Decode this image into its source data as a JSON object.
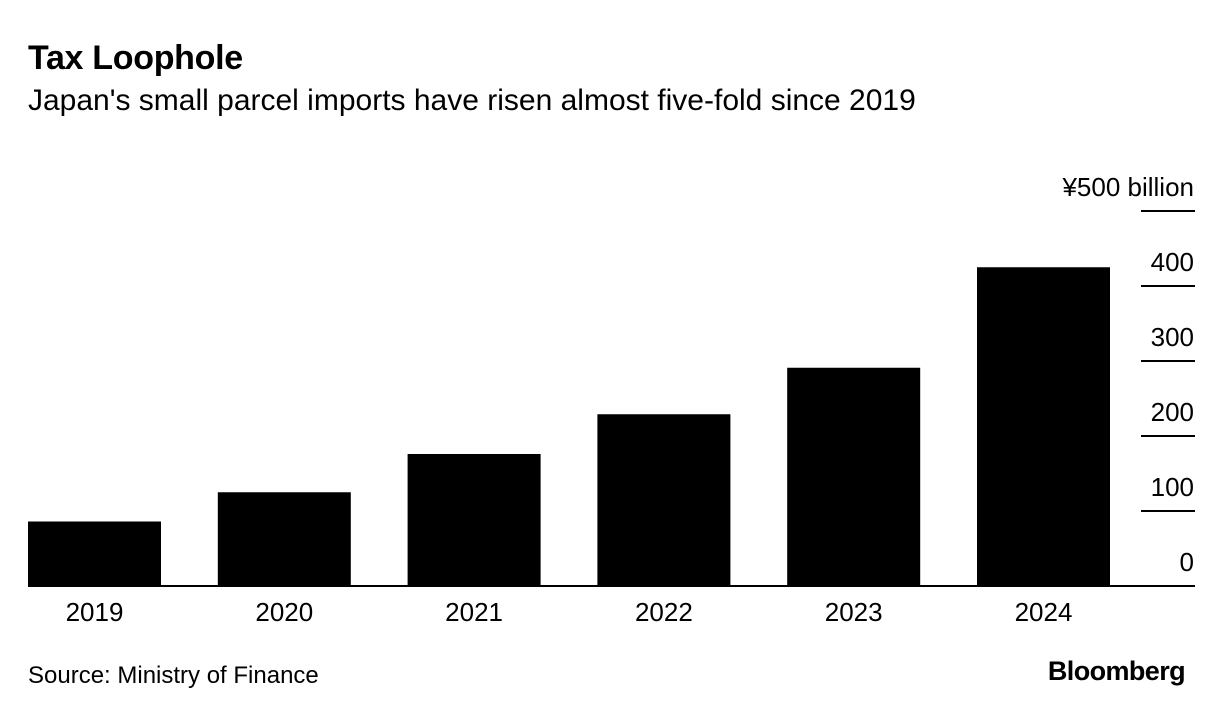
{
  "header": {
    "title": "Tax Loophole",
    "subtitle": "Japan's small parcel imports have risen almost five-fold since 2019"
  },
  "footer": {
    "source": "Source: Ministry of Finance",
    "brand": "Bloomberg"
  },
  "chart_data": {
    "type": "bar",
    "title": "Tax Loophole",
    "subtitle": "Japan's small parcel imports have risen almost five-fold since 2019",
    "categories": [
      "2019",
      "2020",
      "2021",
      "2022",
      "2023",
      "2024"
    ],
    "values": [
      86,
      125,
      176,
      229,
      291,
      425
    ],
    "unit_label": "¥500 billion",
    "y_ticks": [
      0,
      100,
      200,
      300,
      400,
      500
    ],
    "y_tick_labels": [
      "0",
      "100",
      "200",
      "300",
      "400",
      "¥500 billion"
    ],
    "ylim": [
      0,
      500
    ],
    "xlabel": "",
    "ylabel": "",
    "y_axis_position": "right",
    "bar_color": "#000000"
  }
}
